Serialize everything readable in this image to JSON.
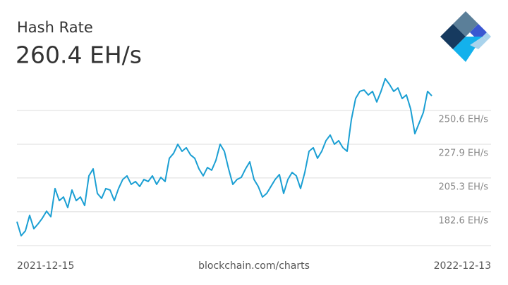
{
  "chart_data": {
    "type": "line",
    "title": "Hash Rate",
    "subtitle": "260.4 EH/s",
    "source": "blockchain.com/charts",
    "xlabels": [
      "2021-12-15",
      "2022-12-13"
    ],
    "color": "#1b9fd3",
    "grid": true,
    "ylim": [
      159.9,
      277.5
    ],
    "yticks": [
      {
        "value": 182.6,
        "label": "182.6 EH/s"
      },
      {
        "value": 205.3,
        "label": "205.3 EH/s"
      },
      {
        "value": 227.9,
        "label": "227.9 EH/s"
      },
      {
        "value": 250.6,
        "label": "250.6 EH/s"
      }
    ],
    "values": [
      176.0,
      166.5,
      169.8,
      180.2,
      171.2,
      174.5,
      178.3,
      183.0,
      179.3,
      198.2,
      190.1,
      192.5,
      185.4,
      197.2,
      190.1,
      192.5,
      186.8,
      206.7,
      211.4,
      194.9,
      191.6,
      198.2,
      197.2,
      190.1,
      198.2,
      204.3,
      206.7,
      201.0,
      202.9,
      199.6,
      204.3,
      202.9,
      206.7,
      201.0,
      205.7,
      202.9,
      218.5,
      221.8,
      227.9,
      223.2,
      225.6,
      220.8,
      218.5,
      211.4,
      206.7,
      212.3,
      210.5,
      217.1,
      227.9,
      223.2,
      211.4,
      201.0,
      204.3,
      205.7,
      211.4,
      216.1,
      204.3,
      199.6,
      192.5,
      194.9,
      199.6,
      204.3,
      207.6,
      194.9,
      204.3,
      209.0,
      206.7,
      198.2,
      209.0,
      223.2,
      225.6,
      218.5,
      223.2,
      230.3,
      234.1,
      227.9,
      230.3,
      225.6,
      223.2,
      244.5,
      258.6,
      263.4,
      264.3,
      261.0,
      263.4,
      256.3,
      263.4,
      271.9,
      268.1,
      263.4,
      265.7,
      258.6,
      261.0,
      251.6,
      235.0,
      242.1,
      249.2,
      263.4,
      260.4
    ]
  }
}
